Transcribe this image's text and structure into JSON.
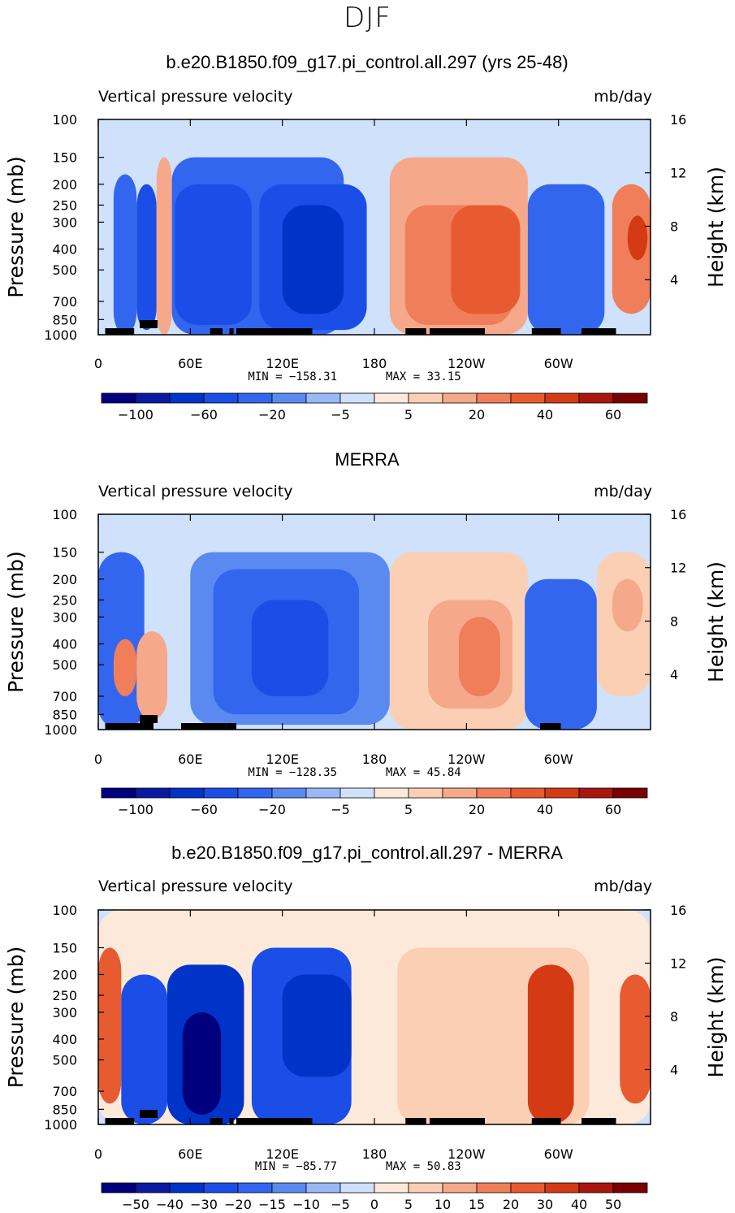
{
  "page_title": "DJF",
  "chart_data": [
    {
      "type": "heatmap",
      "title": "b.e20.B1850.f09_g17.pi_control.all.297 (yrs 25-48)",
      "left_label": "Vertical pressure velocity",
      "right_label": "mb/day",
      "ylabel": "Pressure (mb)",
      "y2label": "Height (km)",
      "x_ticks": [
        "0",
        "60E",
        "120E",
        "180",
        "120W",
        "60W"
      ],
      "x_tick_lons": [
        0,
        60,
        120,
        180,
        240,
        300
      ],
      "xlim": [
        0,
        360
      ],
      "y_ticks": [
        "100",
        "150",
        "200",
        "250",
        "300",
        "400",
        "500",
        "700",
        "850",
        "1000"
      ],
      "y_tick_values": [
        100,
        150,
        200,
        250,
        300,
        400,
        500,
        700,
        850,
        1000
      ],
      "ylim": [
        1000,
        100
      ],
      "y_scale": "log",
      "y2_ticks": [
        "4",
        "8",
        "12",
        "16"
      ],
      "y2_tick_values": [
        4,
        8,
        12,
        16
      ],
      "min_text": "MIN = −158.31",
      "max_text": "MAX =   33.15",
      "colorbar_labels": [
        "−100",
        "−60",
        "−20",
        "−5",
        "5",
        "20",
        "40",
        "60"
      ],
      "colorbar_label_index": [
        1,
        3,
        5,
        7,
        9,
        11,
        13,
        15
      ],
      "colorbar_levels": [
        -150,
        -100,
        -80,
        -60,
        -40,
        -20,
        -10,
        -5,
        0,
        5,
        10,
        20,
        30,
        40,
        50,
        60
      ],
      "cells": [
        {
          "lon": [
            0,
            12
          ],
          "p": [
            100,
            1000
          ],
          "v": -5
        },
        {
          "lon": [
            10,
            25
          ],
          "p": [
            180,
            1000
          ],
          "v": -40
        },
        {
          "lon": [
            25,
            38
          ],
          "p": [
            200,
            950
          ],
          "v": -60
        },
        {
          "lon": [
            38,
            48
          ],
          "p": [
            150,
            1000
          ],
          "v": 10
        },
        {
          "lon": [
            48,
            160
          ],
          "p": [
            150,
            1000
          ],
          "v": -30
        },
        {
          "lon": [
            50,
            100
          ],
          "p": [
            200,
            900
          ],
          "v": -50
        },
        {
          "lon": [
            105,
            175
          ],
          "p": [
            200,
            950
          ],
          "v": -60
        },
        {
          "lon": [
            120,
            160
          ],
          "p": [
            250,
            800
          ],
          "v": -80
        },
        {
          "lon": [
            190,
            280
          ],
          "p": [
            150,
            1000
          ],
          "v": 10
        },
        {
          "lon": [
            200,
            270
          ],
          "p": [
            250,
            900
          ],
          "v": 20
        },
        {
          "lon": [
            230,
            275
          ],
          "p": [
            250,
            800
          ],
          "v": 30
        },
        {
          "lon": [
            280,
            330
          ],
          "p": [
            200,
            1000
          ],
          "v": -40
        },
        {
          "lon": [
            335,
            360
          ],
          "p": [
            200,
            800
          ],
          "v": 20
        },
        {
          "lon": [
            345,
            358
          ],
          "p": [
            280,
            450
          ],
          "v": 40
        }
      ]
    },
    {
      "type": "heatmap",
      "title": "MERRA",
      "left_label": "Vertical pressure velocity",
      "right_label": "mb/day",
      "ylabel": "Pressure (mb)",
      "y2label": "Height (km)",
      "x_ticks": [
        "0",
        "60E",
        "120E",
        "180",
        "120W",
        "60W"
      ],
      "x_tick_lons": [
        0,
        60,
        120,
        180,
        240,
        300
      ],
      "xlim": [
        0,
        360
      ],
      "y_ticks": [
        "100",
        "150",
        "200",
        "250",
        "300",
        "400",
        "500",
        "700",
        "850",
        "1000"
      ],
      "y_tick_values": [
        100,
        150,
        200,
        250,
        300,
        400,
        500,
        700,
        850,
        1000
      ],
      "ylim": [
        1000,
        100
      ],
      "y_scale": "log",
      "y2_ticks": [
        "4",
        "8",
        "12",
        "16"
      ],
      "y2_tick_values": [
        4,
        8,
        12,
        16
      ],
      "min_text": "MIN = −128.35",
      "max_text": "MAX =   45.84",
      "colorbar_labels": [
        "−100",
        "−60",
        "−20",
        "−5",
        "5",
        "20",
        "40",
        "60"
      ],
      "colorbar_label_index": [
        1,
        3,
        5,
        7,
        9,
        11,
        13,
        15
      ],
      "colorbar_levels": [
        -150,
        -100,
        -80,
        -60,
        -40,
        -20,
        -10,
        -5,
        0,
        5,
        10,
        20,
        30,
        40,
        50,
        60
      ],
      "cells": [
        {
          "lon": [
            0,
            360
          ],
          "p": [
            100,
            1000
          ],
          "v": -5
        },
        {
          "lon": [
            0,
            30
          ],
          "p": [
            150,
            1000
          ],
          "v": -30
        },
        {
          "lon": [
            10,
            25
          ],
          "p": [
            380,
            700
          ],
          "v": 20
        },
        {
          "lon": [
            25,
            45
          ],
          "p": [
            350,
            900
          ],
          "v": 10
        },
        {
          "lon": [
            60,
            190
          ],
          "p": [
            150,
            950
          ],
          "v": -20
        },
        {
          "lon": [
            75,
            170
          ],
          "p": [
            180,
            850
          ],
          "v": -40
        },
        {
          "lon": [
            100,
            150
          ],
          "p": [
            250,
            700
          ],
          "v": -60
        },
        {
          "lon": [
            190,
            280
          ],
          "p": [
            150,
            1000
          ],
          "v": 5
        },
        {
          "lon": [
            215,
            270
          ],
          "p": [
            250,
            800
          ],
          "v": 10
        },
        {
          "lon": [
            235,
            262
          ],
          "p": [
            300,
            700
          ],
          "v": 20
        },
        {
          "lon": [
            278,
            325
          ],
          "p": [
            200,
            1000
          ],
          "v": -40
        },
        {
          "lon": [
            325,
            360
          ],
          "p": [
            150,
            700
          ],
          "v": 5
        },
        {
          "lon": [
            335,
            355
          ],
          "p": [
            200,
            350
          ],
          "v": 10
        }
      ]
    },
    {
      "type": "heatmap",
      "title": "b.e20.B1850.f09_g17.pi_control.all.297 - MERRA",
      "left_label": "Vertical pressure velocity",
      "right_label": "mb/day",
      "ylabel": "Pressure (mb)",
      "y2label": "Height (km)",
      "x_ticks": [
        "0",
        "60E",
        "120E",
        "180",
        "120W",
        "60W"
      ],
      "x_tick_lons": [
        0,
        60,
        120,
        180,
        240,
        300
      ],
      "xlim": [
        0,
        360
      ],
      "y_ticks": [
        "100",
        "150",
        "200",
        "250",
        "300",
        "400",
        "500",
        "700",
        "850",
        "1000"
      ],
      "y_tick_values": [
        100,
        150,
        200,
        250,
        300,
        400,
        500,
        700,
        850,
        1000
      ],
      "ylim": [
        1000,
        100
      ],
      "y_scale": "log",
      "y2_ticks": [
        "4",
        "8",
        "12",
        "16"
      ],
      "y2_tick_values": [
        4,
        8,
        12,
        16
      ],
      "min_text": "MIN =  −85.77",
      "max_text": "MAX =   50.83",
      "colorbar_labels": [
        "−50",
        "−40",
        "−30",
        "−20",
        "−15",
        "−10",
        "−5",
        "0",
        "5",
        "10",
        "15",
        "20",
        "30",
        "40",
        "50"
      ],
      "colorbar_label_index": [
        1,
        2,
        3,
        4,
        5,
        6,
        7,
        8,
        9,
        10,
        11,
        12,
        13,
        14,
        15
      ],
      "colorbar_levels": [
        -60,
        -50,
        -40,
        -30,
        -20,
        -15,
        -10,
        -5,
        0,
        5,
        10,
        15,
        20,
        30,
        40,
        50
      ],
      "cells": [
        {
          "lon": [
            0,
            360
          ],
          "p": [
            100,
            1000
          ],
          "v": 2
        },
        {
          "lon": [
            0,
            15
          ],
          "p": [
            150,
            800
          ],
          "v": 25
        },
        {
          "lon": [
            15,
            45
          ],
          "p": [
            200,
            1000
          ],
          "v": -25
        },
        {
          "lon": [
            45,
            95
          ],
          "p": [
            180,
            1000
          ],
          "v": -35
        },
        {
          "lon": [
            55,
            80
          ],
          "p": [
            300,
            900
          ],
          "v": -55
        },
        {
          "lon": [
            100,
            165
          ],
          "p": [
            150,
            1000
          ],
          "v": -25
        },
        {
          "lon": [
            120,
            165
          ],
          "p": [
            200,
            600
          ],
          "v": -35
        },
        {
          "lon": [
            195,
            320
          ],
          "p": [
            150,
            1000
          ],
          "v": 5
        },
        {
          "lon": [
            280,
            310
          ],
          "p": [
            180,
            1000
          ],
          "v": 35
        },
        {
          "lon": [
            340,
            360
          ],
          "p": [
            200,
            800
          ],
          "v": 25
        }
      ]
    }
  ],
  "colors": {
    "palette": [
      "#00007f",
      "#0a1aa0",
      "#0033c8",
      "#1a4ee6",
      "#3366ee",
      "#5a8af0",
      "#99b8f5",
      "#cfe1fb",
      "#fde9da",
      "#fbcfb4",
      "#f6a88a",
      "#f07e5a",
      "#e85a30",
      "#d43a14",
      "#a8160e",
      "#7a0000"
    ]
  }
}
